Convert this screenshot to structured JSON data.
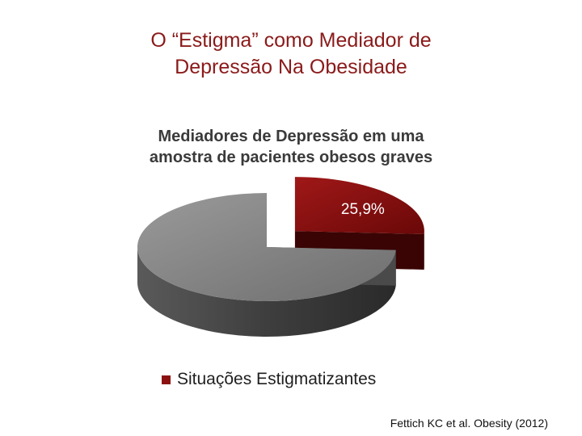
{
  "slide": {
    "title_line1": "O “Estigma” como Mediador de",
    "title_line2": "Depressão Na Obesidade",
    "source": "Fettich KC et al. Obesity (2012)"
  },
  "chart_data": {
    "type": "pie",
    "title": "Mediadores de Depressão em uma amostra de pacientes obesos graves",
    "title_line1": "Mediadores de Depressão em uma",
    "title_line2": "amostra de pacientes obesos graves",
    "slices": [
      {
        "name": "Situações Estigmatizantes",
        "value": 25.9,
        "label": "25,9%",
        "color": "#8b1111",
        "exploded": true
      },
      {
        "name": "",
        "value": 74.1,
        "label": "",
        "color": "#808080",
        "exploded": false
      }
    ],
    "legend": {
      "position": "bottom",
      "entries": [
        "Situações Estigmatizantes"
      ]
    },
    "style": "3d"
  }
}
